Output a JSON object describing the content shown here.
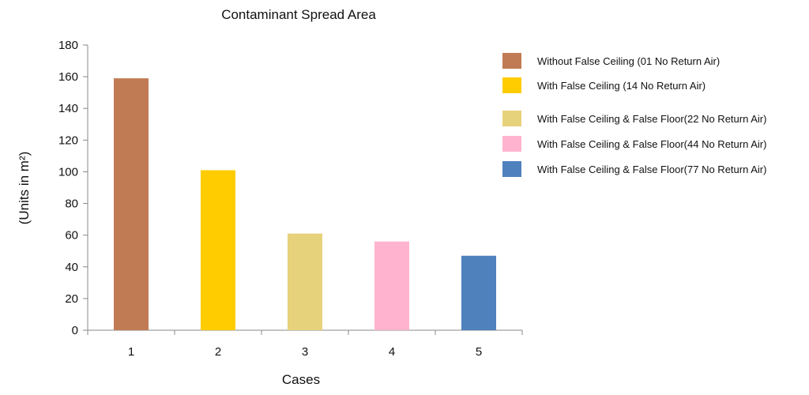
{
  "chart_data": {
    "type": "bar",
    "title": "Contaminant Spread Area",
    "xlabel": "Cases",
    "ylabel": "(Units in m²)",
    "categories": [
      "1",
      "2",
      "3",
      "4",
      "5"
    ],
    "values": [
      159,
      101,
      61,
      56,
      47
    ],
    "colors": [
      "#c07b54",
      "#ffcc00",
      "#e6d27a",
      "#ffb3cf",
      "#4f81bd"
    ],
    "ylim": [
      0,
      180
    ],
    "yticks": [
      0,
      20,
      40,
      60,
      80,
      100,
      120,
      140,
      160,
      180
    ],
    "grid": false,
    "legend_position": "right",
    "legend": [
      "Without False Ceiling (01 No Return Air)",
      "With False Ceiling (14 No Return Air)",
      "With False Ceiling & False Floor(22 No Return Air)",
      "With False Ceiling & False Floor(44 No Return Air)",
      "With False Ceiling & False Floor(77 No Return Air)"
    ]
  }
}
